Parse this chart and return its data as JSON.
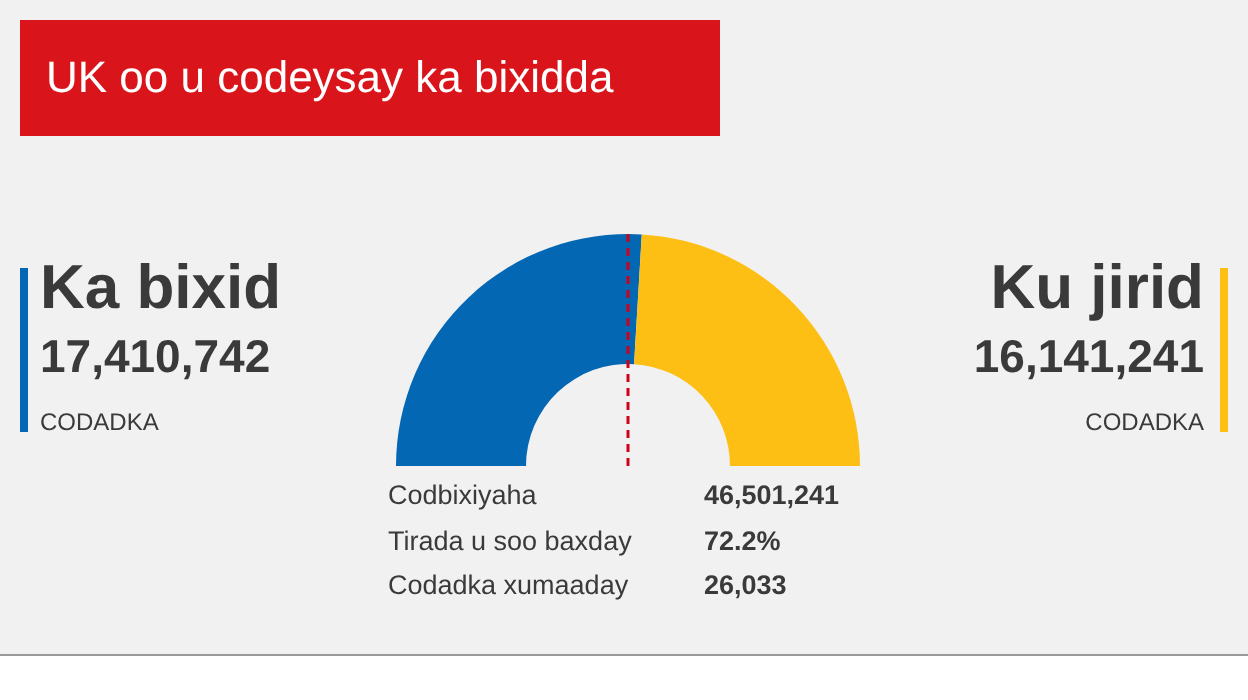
{
  "chart_data": {
    "type": "donut",
    "title": "UK oo u codeysay ka bixidda",
    "categories": [
      "Ka bixid",
      "Ku jirid"
    ],
    "values": [
      17410742,
      16141241
    ],
    "colors": [
      "#0467b4",
      "#fdbf13"
    ],
    "value_labels": [
      "17,410,742",
      "16,141,241"
    ],
    "legend": false,
    "needle": "Ka bixid",
    "annotations": [
      "CODADKA",
      "CODADKA",
      "Codbixiyaha",
      "46,501,241",
      "Tirada u soo baxday",
      "72.2%",
      "Codadka xumaaday",
      "26,033"
    ]
  }
}
